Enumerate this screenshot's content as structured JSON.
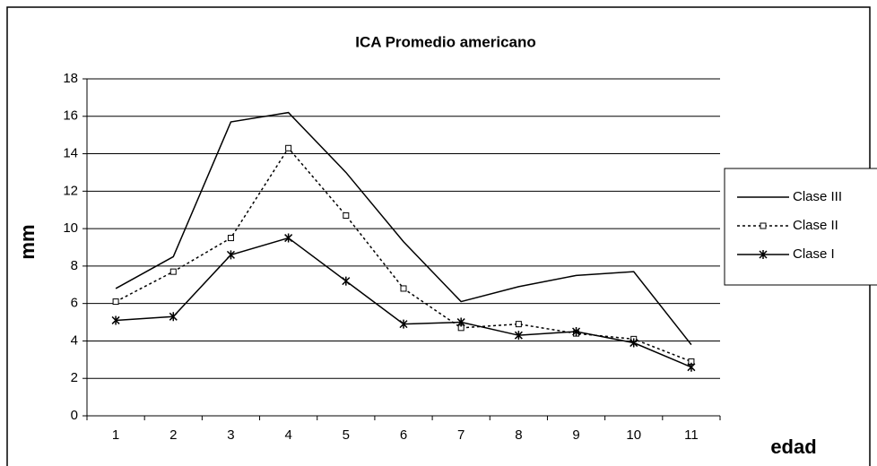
{
  "chart_data": {
    "type": "line",
    "title": "ICA Promedio americano",
    "y_label": "mm",
    "x_label": "edad",
    "categories": [
      "1",
      "2",
      "3",
      "4",
      "5",
      "6",
      "7",
      "8",
      "9",
      "10",
      "11"
    ],
    "series": [
      {
        "name": "Clase III",
        "color": "#000000",
        "dash": "solid",
        "marker": "none",
        "values": [
          6.8,
          8.5,
          15.7,
          16.2,
          13.0,
          9.3,
          6.1,
          6.9,
          7.5,
          7.7,
          3.8
        ]
      },
      {
        "name": "Clase II",
        "color": "#000000",
        "dash": "dotted",
        "marker": "square",
        "values": [
          6.1,
          7.7,
          9.5,
          14.3,
          10.7,
          6.8,
          4.7,
          4.9,
          4.4,
          4.1,
          2.9
        ]
      },
      {
        "name": "Clase I",
        "color": "#000000",
        "dash": "solid",
        "marker": "asterisk",
        "values": [
          5.1,
          5.3,
          8.6,
          9.5,
          7.2,
          4.9,
          5.0,
          4.3,
          4.5,
          3.9,
          2.6
        ]
      }
    ],
    "ylim": [
      0,
      18
    ],
    "yticks": [
      0,
      2,
      4,
      6,
      8,
      10,
      12,
      14,
      16,
      18
    ],
    "grid": true,
    "legend": "right"
  }
}
